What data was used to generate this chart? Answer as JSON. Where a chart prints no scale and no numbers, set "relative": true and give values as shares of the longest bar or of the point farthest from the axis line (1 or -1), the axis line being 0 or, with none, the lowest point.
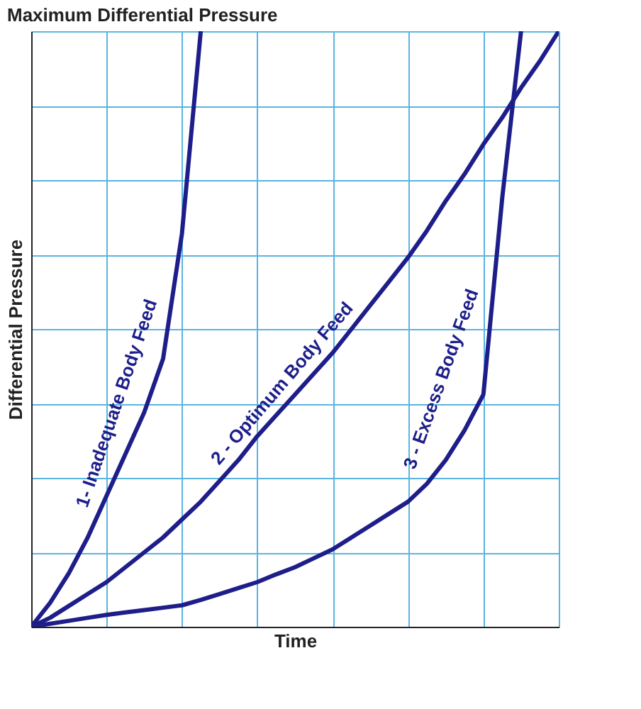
{
  "chart_data": {
    "type": "line",
    "title": "Maximum Differential Pressure",
    "xlabel": "Time",
    "ylabel": "Differential Pressure",
    "relative": true,
    "categories": [
      null,
      null,
      null,
      null,
      null,
      null,
      null,
      null,
      null,
      null,
      null,
      null,
      null,
      null,
      null,
      null,
      null,
      null,
      null,
      null,
      null,
      null,
      null,
      null,
      null,
      null,
      null,
      null,
      null
    ],
    "tick_labels": false,
    "grid": true,
    "marker": "none",
    "line_style": "solid",
    "series": [
      {
        "name": "1- Inadequate Body Feed",
        "color": "#1e1e8a",
        "values": [
          0,
          0.04,
          0.09,
          0.15,
          0.22,
          0.29,
          0.36,
          0.45,
          0.66,
          1.0,
          null,
          null,
          null,
          null,
          null,
          null,
          null,
          null,
          null,
          null,
          null,
          null,
          null,
          null,
          null,
          null,
          null,
          null,
          null
        ]
      },
      {
        "name": "2 - Optimum Body Feed",
        "color": "#1e1e8a",
        "values": [
          0,
          0.015,
          0.035,
          0.055,
          0.075,
          0.1,
          0.125,
          0.15,
          0.18,
          0.21,
          0.245,
          0.28,
          0.32,
          0.355,
          0.39,
          0.425,
          0.46,
          0.5,
          0.54,
          0.58,
          0.62,
          0.665,
          0.715,
          0.76,
          0.81,
          0.855,
          0.905,
          0.95,
          1.0
        ]
      },
      {
        "name": "3 - Excess Body Feed",
        "color": "#1e1e8a",
        "values": [
          0,
          0.005,
          0.01,
          0.015,
          0.02,
          0.024,
          0.028,
          0.032,
          0.036,
          0.045,
          0.055,
          0.065,
          0.075,
          0.088,
          0.1,
          0.115,
          0.13,
          0.15,
          0.17,
          0.19,
          0.21,
          0.24,
          0.28,
          0.33,
          0.39,
          0.72,
          1.0,
          null,
          null
        ]
      }
    ]
  }
}
